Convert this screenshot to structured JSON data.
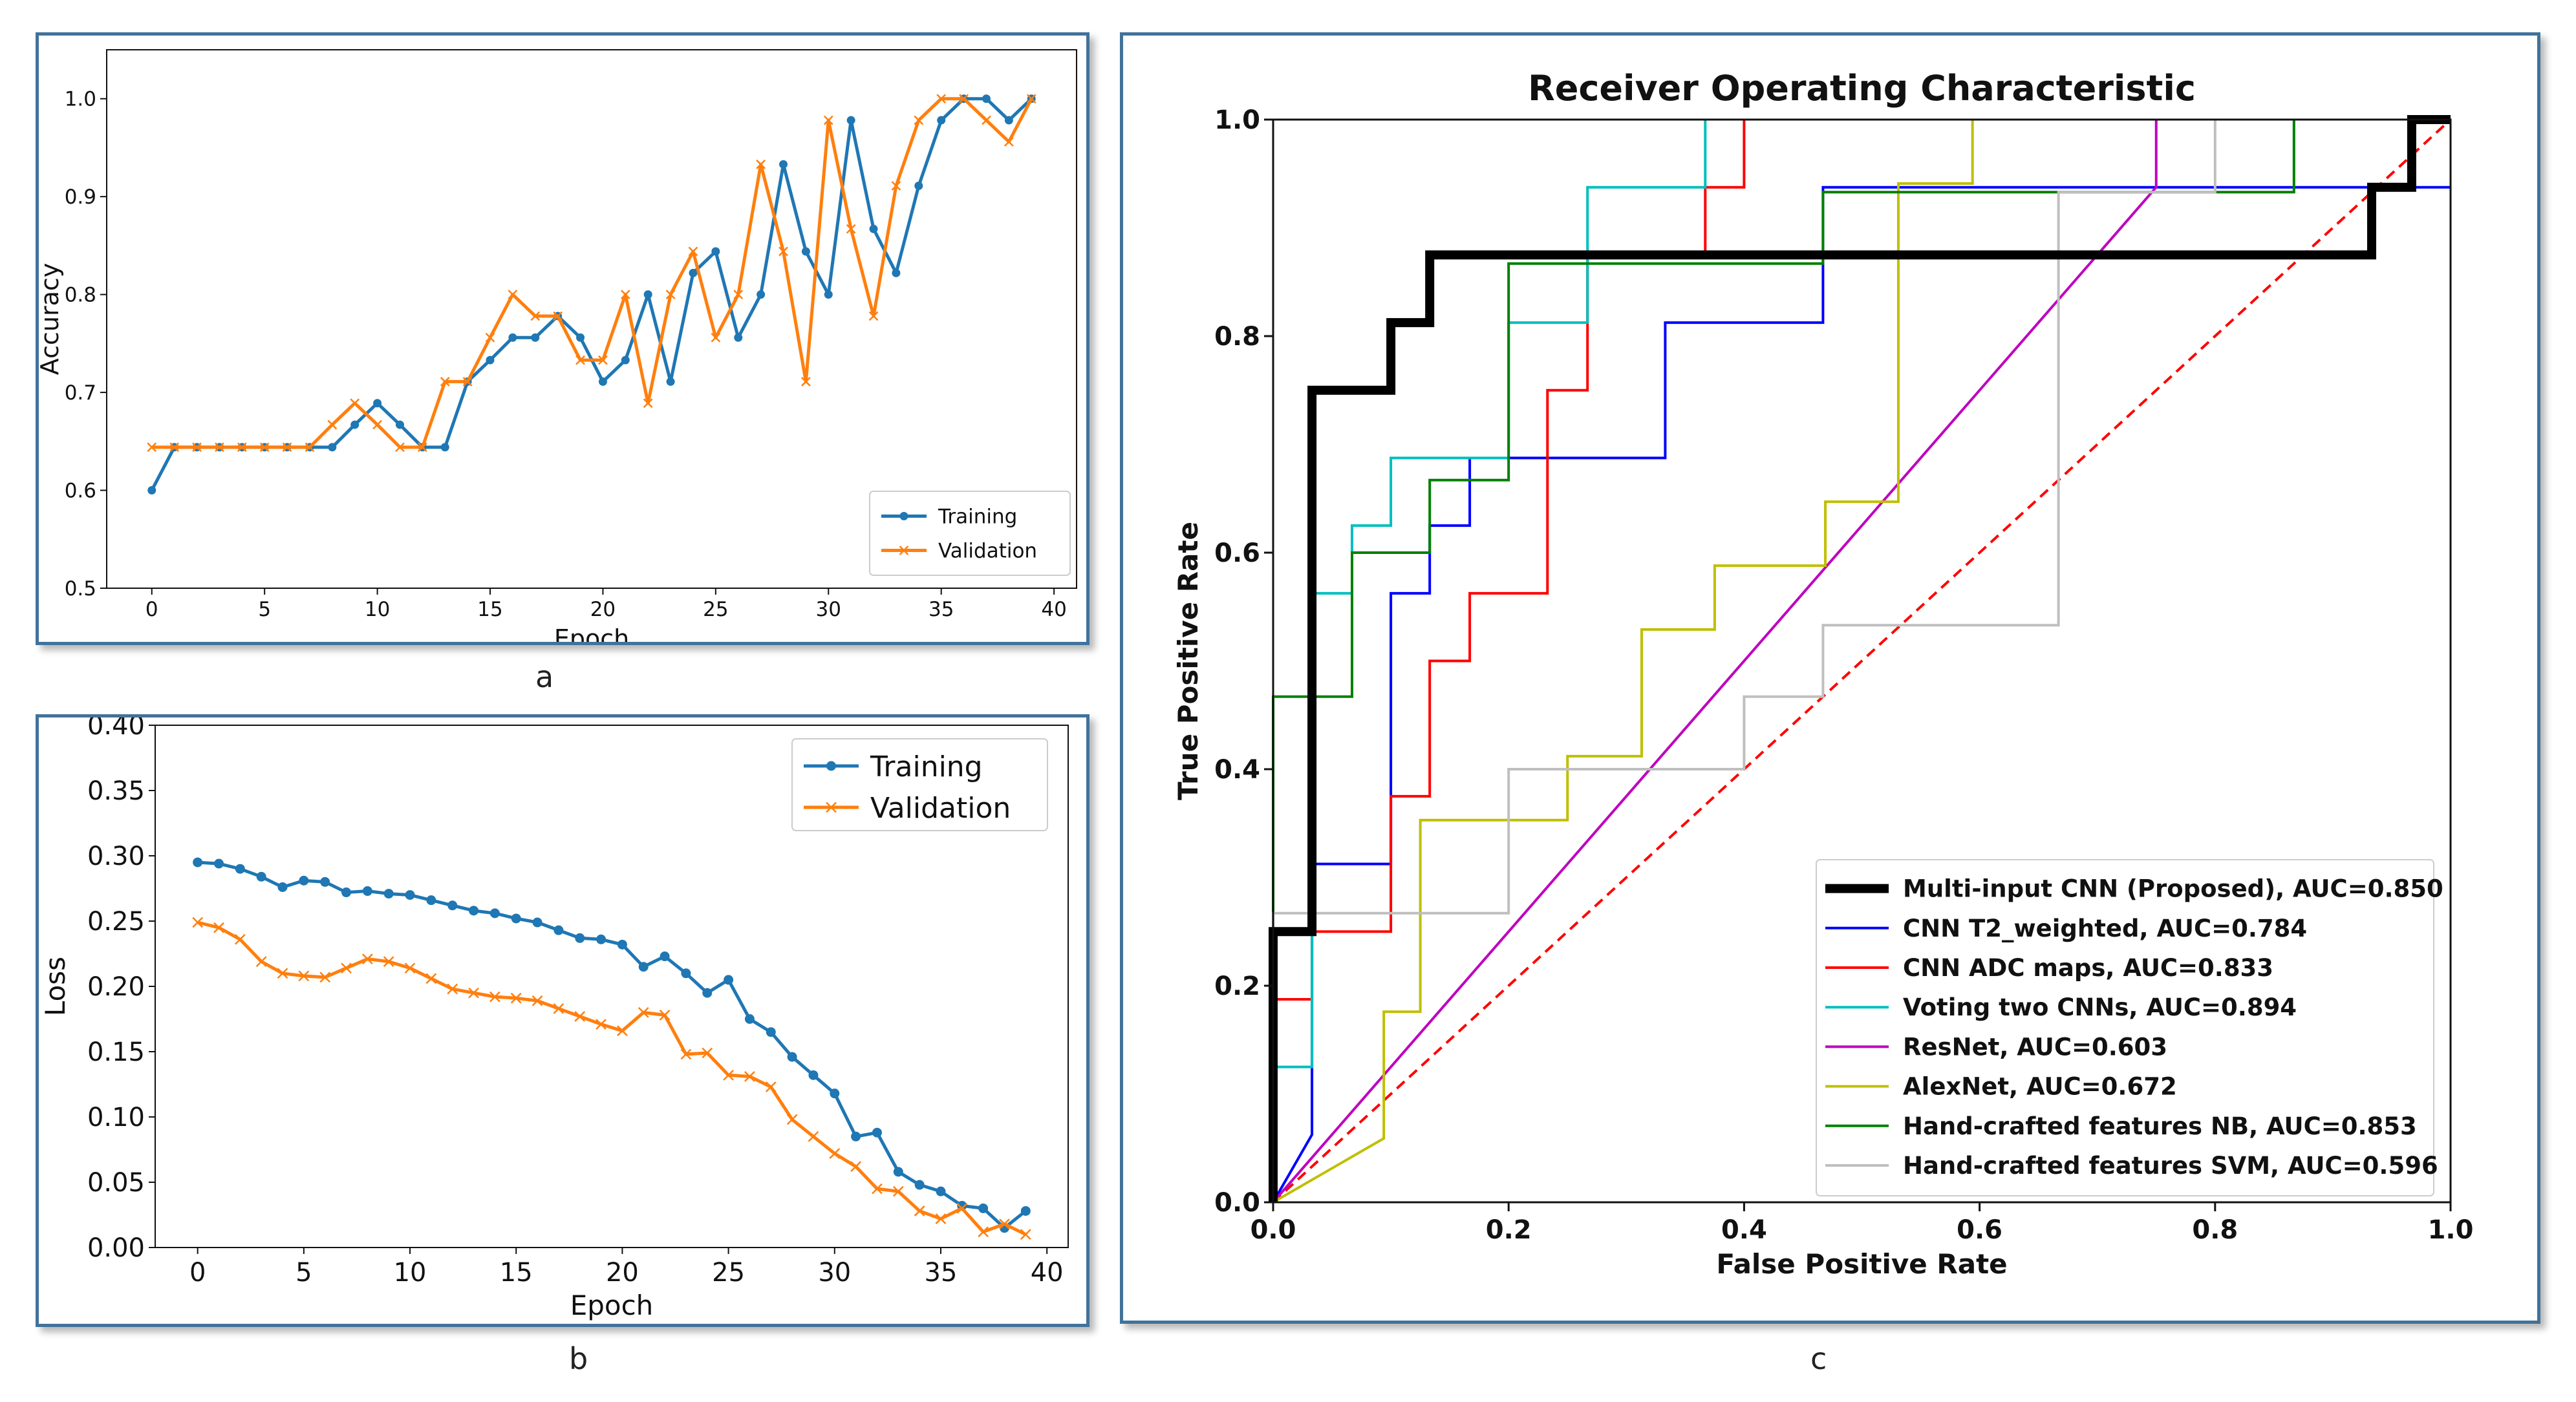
{
  "captions": {
    "a": "a",
    "b": "b",
    "c": "c"
  },
  "chart_data": [
    {
      "id": "a",
      "type": "line",
      "title": "",
      "xlabel": "Epoch",
      "ylabel": "Accuracy",
      "xlim": [
        -2,
        41
      ],
      "ylim": [
        0.5,
        1.05
      ],
      "xticks": [
        0,
        5,
        10,
        15,
        20,
        25,
        30,
        35,
        40
      ],
      "yticks": [
        0.5,
        0.6,
        0.7,
        0.8,
        0.9,
        1.0
      ],
      "ytick_labels": [
        "0.5",
        "0.6",
        "0.7",
        "0.8",
        "0.9",
        "1.0"
      ],
      "legend": "bottom-right",
      "grid": false,
      "series": [
        {
          "name": "Training",
          "color": "#1f77b4",
          "marker": "dot",
          "x": [
            0,
            1,
            2,
            3,
            4,
            5,
            6,
            7,
            8,
            9,
            10,
            11,
            12,
            13,
            14,
            15,
            16,
            17,
            18,
            19,
            20,
            21,
            22,
            23,
            24,
            25,
            26,
            27,
            28,
            29,
            30,
            31,
            32,
            33,
            34,
            35,
            36,
            37,
            38,
            39
          ],
          "values": [
            0.6,
            0.644,
            0.644,
            0.644,
            0.644,
            0.644,
            0.644,
            0.644,
            0.644,
            0.667,
            0.689,
            0.667,
            0.644,
            0.644,
            0.711,
            0.733,
            0.756,
            0.756,
            0.778,
            0.756,
            0.711,
            0.733,
            0.8,
            0.711,
            0.822,
            0.844,
            0.756,
            0.8,
            0.933,
            0.844,
            0.8,
            0.978,
            0.867,
            0.822,
            0.911,
            0.978,
            1.0,
            1.0,
            0.978,
            1.0
          ]
        },
        {
          "name": "Validation",
          "color": "#ff7f0e",
          "marker": "x",
          "x": [
            0,
            1,
            2,
            3,
            4,
            5,
            6,
            7,
            8,
            9,
            10,
            11,
            12,
            13,
            14,
            15,
            16,
            17,
            18,
            19,
            20,
            21,
            22,
            23,
            24,
            25,
            26,
            27,
            28,
            29,
            30,
            31,
            32,
            33,
            34,
            35,
            36,
            37,
            38,
            39
          ],
          "values": [
            0.644,
            0.644,
            0.644,
            0.644,
            0.644,
            0.644,
            0.644,
            0.644,
            0.667,
            0.689,
            0.667,
            0.644,
            0.644,
            0.711,
            0.711,
            0.756,
            0.8,
            0.778,
            0.778,
            0.733,
            0.733,
            0.8,
            0.689,
            0.8,
            0.844,
            0.756,
            0.8,
            0.933,
            0.844,
            0.711,
            0.978,
            0.867,
            0.778,
            0.911,
            0.978,
            1.0,
            1.0,
            0.978,
            0.956,
            1.0
          ]
        }
      ]
    },
    {
      "id": "b",
      "type": "line",
      "title": "",
      "xlabel": "Epoch",
      "ylabel": "Loss",
      "xlim": [
        -2,
        41
      ],
      "ylim": [
        0.0,
        0.4
      ],
      "xticks": [
        0,
        5,
        10,
        15,
        20,
        25,
        30,
        35,
        40
      ],
      "yticks": [
        0.0,
        0.05,
        0.1,
        0.15,
        0.2,
        0.25,
        0.3,
        0.35,
        0.4
      ],
      "ytick_labels": [
        "0.00",
        "0.05",
        "0.10",
        "0.15",
        "0.20",
        "0.25",
        "0.30",
        "0.35",
        "0.40"
      ],
      "legend": "top-right",
      "grid": false,
      "series": [
        {
          "name": "Training",
          "color": "#1f77b4",
          "marker": "dot",
          "x": [
            0,
            1,
            2,
            3,
            4,
            5,
            6,
            7,
            8,
            9,
            10,
            11,
            12,
            13,
            14,
            15,
            16,
            17,
            18,
            19,
            20,
            21,
            22,
            23,
            24,
            25,
            26,
            27,
            28,
            29,
            30,
            31,
            32,
            33,
            34,
            35,
            36,
            37,
            38,
            39
          ],
          "values": [
            0.295,
            0.294,
            0.29,
            0.284,
            0.276,
            0.281,
            0.28,
            0.272,
            0.273,
            0.271,
            0.27,
            0.266,
            0.262,
            0.258,
            0.256,
            0.252,
            0.249,
            0.243,
            0.237,
            0.236,
            0.232,
            0.215,
            0.223,
            0.21,
            0.195,
            0.205,
            0.175,
            0.165,
            0.146,
            0.132,
            0.118,
            0.085,
            0.088,
            0.058,
            0.048,
            0.043,
            0.032,
            0.03,
            0.015,
            0.028
          ]
        },
        {
          "name": "Validation",
          "color": "#ff7f0e",
          "marker": "x",
          "x": [
            0,
            1,
            2,
            3,
            4,
            5,
            6,
            7,
            8,
            9,
            10,
            11,
            12,
            13,
            14,
            15,
            16,
            17,
            18,
            19,
            20,
            21,
            22,
            23,
            24,
            25,
            26,
            27,
            28,
            29,
            30,
            31,
            32,
            33,
            34,
            35,
            36,
            37,
            38,
            39
          ],
          "values": [
            0.249,
            0.245,
            0.236,
            0.219,
            0.21,
            0.208,
            0.207,
            0.214,
            0.221,
            0.219,
            0.214,
            0.206,
            0.198,
            0.195,
            0.192,
            0.191,
            0.189,
            0.183,
            0.177,
            0.171,
            0.166,
            0.18,
            0.178,
            0.148,
            0.149,
            0.132,
            0.131,
            0.123,
            0.098,
            0.085,
            0.072,
            0.062,
            0.045,
            0.043,
            0.028,
            0.022,
            0.03,
            0.012,
            0.018,
            0.01
          ]
        }
      ]
    },
    {
      "id": "c",
      "type": "line",
      "title": "Receiver Operating Characteristic",
      "xlabel": "False Positive Rate",
      "ylabel": "True Positive Rate",
      "xlim": [
        0,
        1
      ],
      "ylim": [
        0,
        1
      ],
      "xticks": [
        0.0,
        0.2,
        0.4,
        0.6,
        0.8,
        1.0
      ],
      "yticks": [
        0.0,
        0.2,
        0.4,
        0.6,
        0.8,
        1.0
      ],
      "xtick_labels": [
        "0.0",
        "0.2",
        "0.4",
        "0.6",
        "0.8",
        "1.0"
      ],
      "ytick_labels": [
        "0.0",
        "0.2",
        "0.4",
        "0.6",
        "0.8",
        "1.0"
      ],
      "legend": "bottom-right",
      "grid": false,
      "diagonal": {
        "color": "#ff0000",
        "style": "dashed"
      },
      "series": [
        {
          "name": "Multi-input CNN (Proposed), AUC=0.850",
          "color": "#000000",
          "width": 14,
          "x": [
            0,
            0,
            0.033,
            0.033,
            0.1,
            0.1,
            0.133,
            0.133,
            0.933,
            0.933,
            0.967,
            0.967,
            1
          ],
          "y": [
            0,
            0.25,
            0.25,
            0.75,
            0.75,
            0.8125,
            0.8125,
            0.875,
            0.875,
            0.9375,
            0.9375,
            1,
            1
          ]
        },
        {
          "name": "CNN T2_weighted, AUC=0.784",
          "color": "#0000ff",
          "width": 4,
          "x": [
            0,
            0.033,
            0.033,
            0.1,
            0.1,
            0.133,
            0.133,
            0.167,
            0.167,
            0.2,
            0.2,
            0.333,
            0.333,
            0.467,
            0.467,
            1
          ],
          "y": [
            0,
            0.0625,
            0.3125,
            0.3125,
            0.5625,
            0.5625,
            0.625,
            0.625,
            0.6875,
            0.6875,
            0.6875,
            0.6875,
            0.8125,
            0.8125,
            0.9375,
            0.9375
          ]
        },
        {
          "name": "CNN ADC maps, AUC=0.833",
          "color": "#ff0000",
          "width": 4,
          "x": [
            0,
            0,
            0.033,
            0.033,
            0.1,
            0.1,
            0.133,
            0.133,
            0.167,
            0.167,
            0.233,
            0.233,
            0.267,
            0.267,
            0.367,
            0.367,
            0.4,
            0.4
          ],
          "y": [
            0,
            0.1875,
            0.1875,
            0.25,
            0.25,
            0.375,
            0.375,
            0.5,
            0.5,
            0.5625,
            0.5625,
            0.75,
            0.75,
            0.875,
            0.875,
            0.9375,
            0.9375,
            1
          ]
        },
        {
          "name": "Voting two CNNs, AUC=0.894",
          "color": "#00bfbf",
          "width": 4,
          "x": [
            0,
            0,
            0.033,
            0.033,
            0.067,
            0.067,
            0.1,
            0.1,
            0.2,
            0.2,
            0.267,
            0.267,
            0.367,
            0.367
          ],
          "y": [
            0,
            0.125,
            0.125,
            0.5625,
            0.5625,
            0.625,
            0.625,
            0.6875,
            0.6875,
            0.8125,
            0.8125,
            0.9375,
            0.9375,
            1
          ]
        },
        {
          "name": "ResNet, AUC=0.603",
          "color": "#bf00bf",
          "width": 4,
          "x": [
            0,
            0.75,
            0.75
          ],
          "y": [
            0,
            0.9375,
            1
          ]
        },
        {
          "name": "AlexNet, AUC=0.672",
          "color": "#bfbf00",
          "width": 4,
          "x": [
            0,
            0.094,
            0.094,
            0.125,
            0.125,
            0.25,
            0.25,
            0.313,
            0.313,
            0.375,
            0.375,
            0.469,
            0.469,
            0.531,
            0.531,
            0.594,
            0.594
          ],
          "y": [
            0,
            0.059,
            0.176,
            0.176,
            0.353,
            0.353,
            0.412,
            0.412,
            0.529,
            0.529,
            0.588,
            0.588,
            0.647,
            0.647,
            0.941,
            0.941,
            1
          ]
        },
        {
          "name": "Hand-crafted features  NB, AUC=0.853",
          "color": "#008000",
          "width": 4,
          "x": [
            0,
            0,
            0.067,
            0.067,
            0.133,
            0.133,
            0.2,
            0.2,
            0.467,
            0.467,
            0.8,
            0.8,
            0.867,
            0.867
          ],
          "y": [
            0,
            0.467,
            0.467,
            0.6,
            0.6,
            0.667,
            0.667,
            0.867,
            0.867,
            0.933,
            0.933,
            0.933,
            0.933,
            1
          ]
        },
        {
          "name": "Hand-crafted features  SVM, AUC=0.596",
          "color": "#bfbfbf",
          "width": 4,
          "x": [
            0,
            0,
            0.2,
            0.2,
            0.4,
            0.4,
            0.467,
            0.467,
            0.667,
            0.667,
            0.8,
            0.8
          ],
          "y": [
            0,
            0.267,
            0.267,
            0.4,
            0.4,
            0.467,
            0.467,
            0.533,
            0.533,
            0.933,
            0.933,
            1
          ]
        }
      ]
    }
  ]
}
